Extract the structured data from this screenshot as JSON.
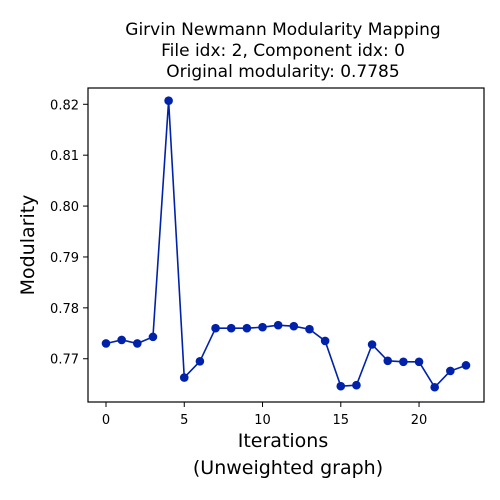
{
  "chart_data": {
    "type": "line",
    "title_lines": [
      "Girvin Newmann Modularity Mapping",
      "File idx: 2, Component idx: 0",
      "Original modularity: 0.7785"
    ],
    "xlabel_lines": [
      "Iterations",
      "(Unweighted graph)"
    ],
    "ylabel": "Modularity",
    "xlim": [
      -1.15,
      24.15
    ],
    "ylim": [
      0.7615,
      0.8232
    ],
    "xticks": [
      0,
      5,
      10,
      15,
      20
    ],
    "yticks": [
      0.77,
      0.78,
      0.79,
      0.8,
      0.81,
      0.82
    ],
    "ytick_labels": [
      "0.77",
      "0.78",
      "0.79",
      "0.80",
      "0.81",
      "0.82"
    ],
    "grid": false,
    "series": [
      {
        "color": "#0022aa",
        "x": [
          0,
          1,
          2,
          3,
          4,
          5,
          6,
          7,
          8,
          9,
          10,
          11,
          12,
          13,
          14,
          15,
          16,
          17,
          18,
          19,
          20,
          21,
          22,
          23
        ],
        "values": [
          0.773,
          0.7737,
          0.773,
          0.7743,
          0.8207,
          0.7663,
          0.7695,
          0.776,
          0.776,
          0.776,
          0.7762,
          0.7766,
          0.7764,
          0.7758,
          0.7735,
          0.7646,
          0.7648,
          0.7728,
          0.7696,
          0.7694,
          0.7694,
          0.7644,
          0.7676,
          0.7687
        ]
      }
    ]
  }
}
